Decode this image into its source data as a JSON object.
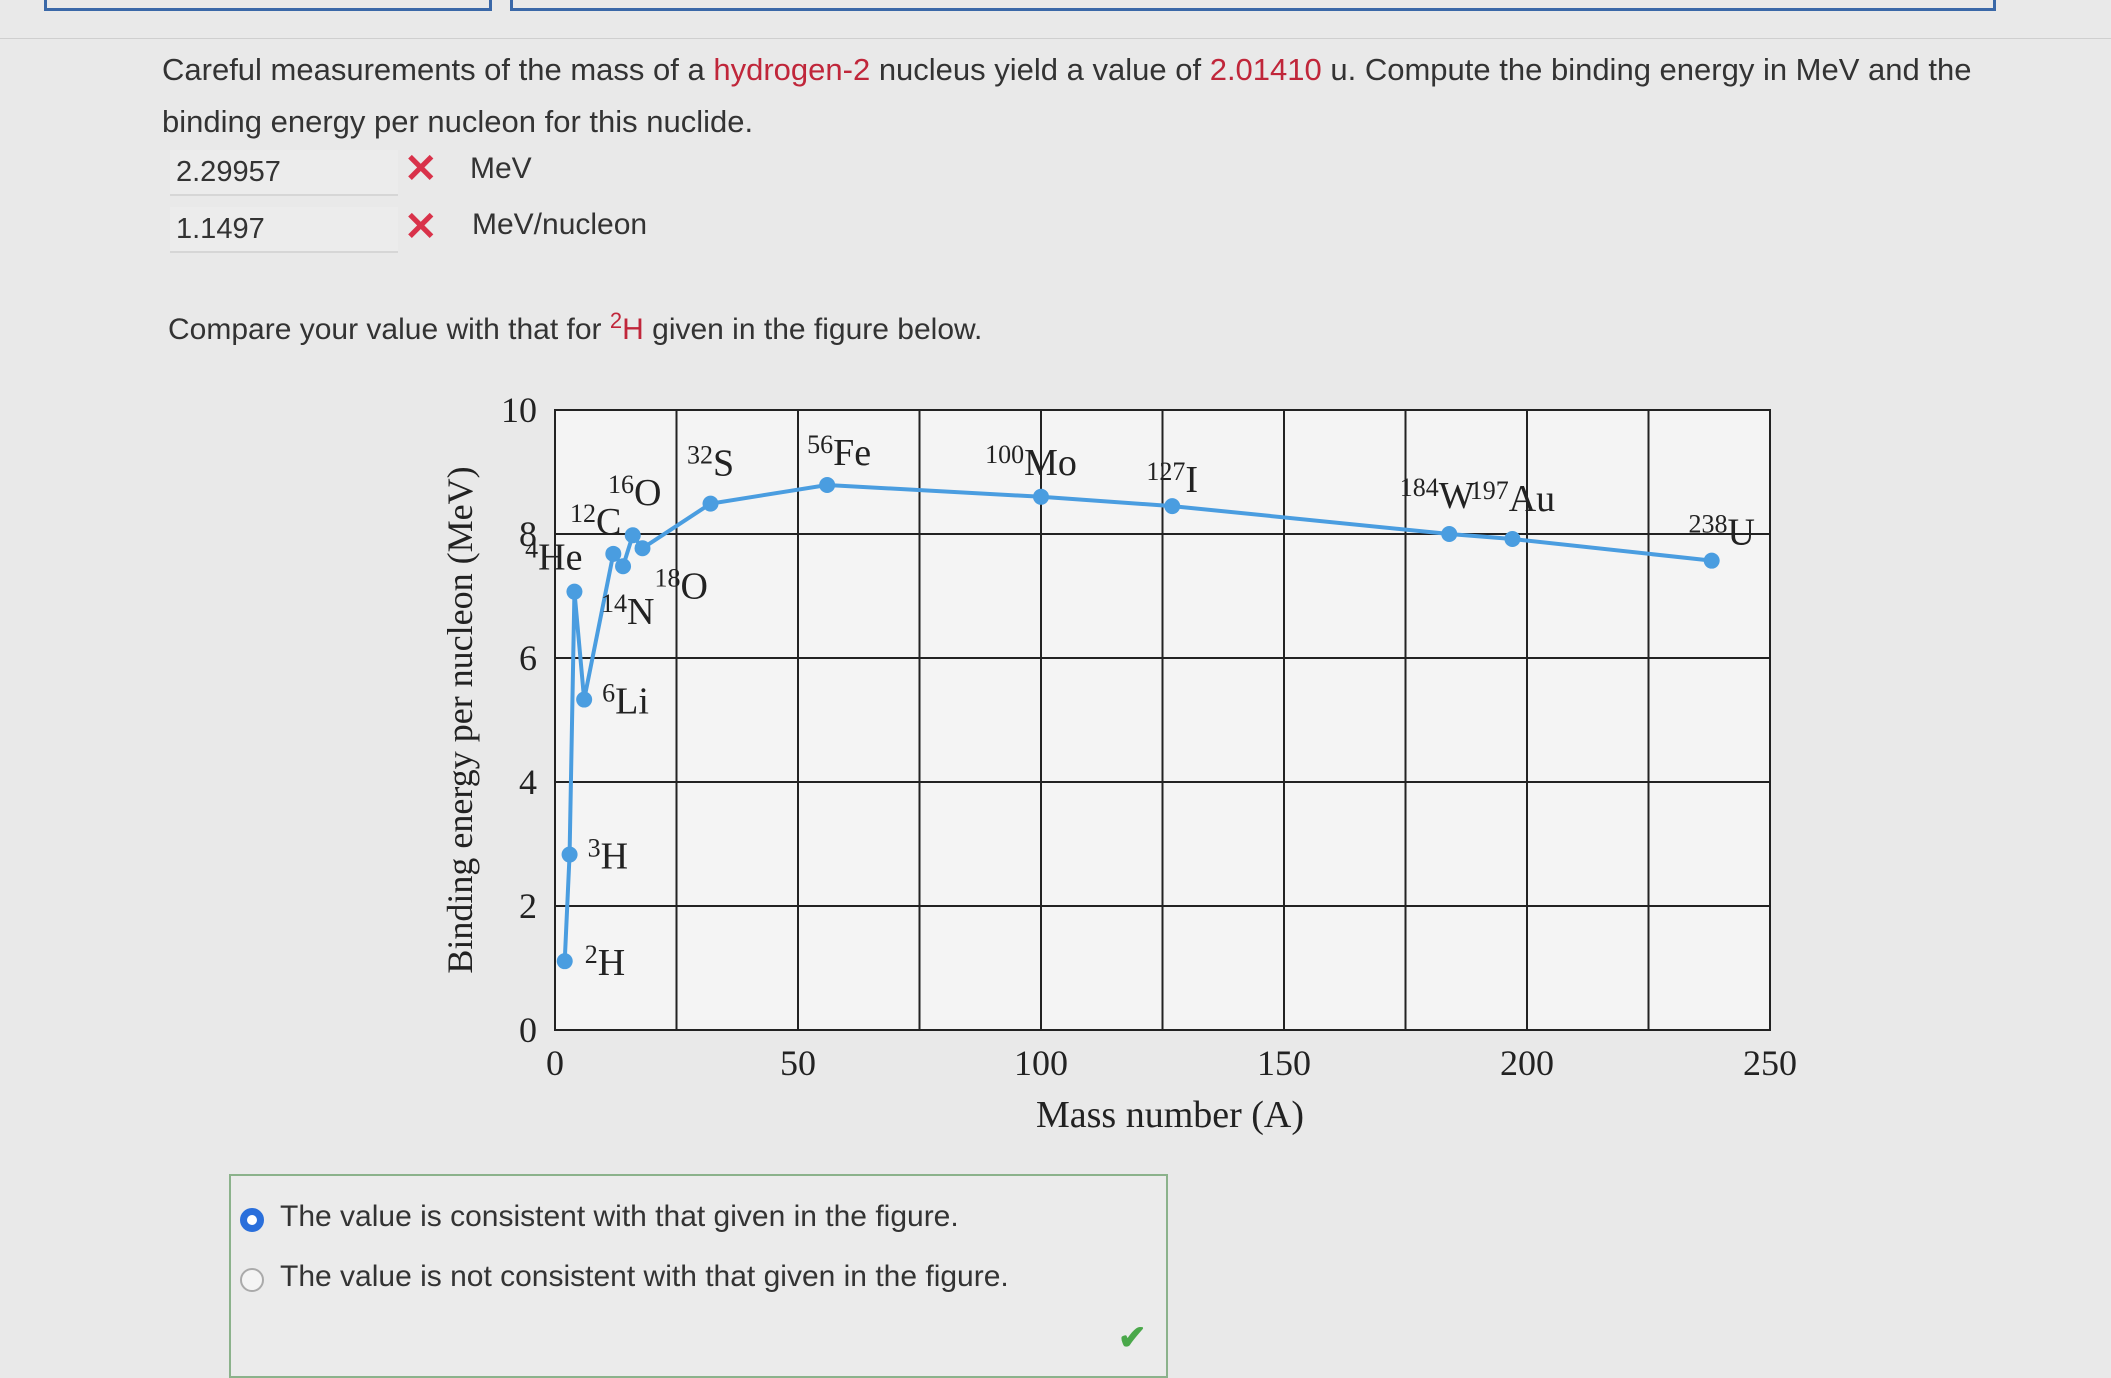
{
  "question": {
    "text_parts": [
      "Careful measurements of the mass of a ",
      "hydrogen-2",
      " nucleus yield a value of ",
      "2.01410",
      " u. Compute the binding energy in MeV and the binding energy per nucleon for this nuclide."
    ]
  },
  "answers": [
    {
      "value": "2.29957",
      "unit": "MeV"
    },
    {
      "value": "1.1497",
      "unit": "MeV/nucleon"
    }
  ],
  "compare": {
    "before": "Compare your value with that for ",
    "sup": "2",
    "symbol": "H",
    "after": " given in the figure below."
  },
  "chart_data": {
    "type": "line",
    "color": "#4a9de0",
    "x_label": "Mass number (A)",
    "y_label": "Binding energy per nucleon (MeV)",
    "x": [
      2,
      3,
      4,
      6,
      12,
      14,
      16,
      18,
      32,
      56,
      100,
      127,
      184,
      197,
      238
    ],
    "values": [
      1.11,
      2.83,
      7.07,
      5.33,
      7.68,
      7.48,
      7.98,
      7.77,
      8.49,
      8.79,
      8.6,
      8.45,
      8.0,
      7.92,
      7.57
    ],
    "point_labels": [
      {
        "sup": "2",
        "symbol": "H"
      },
      {
        "sup": "3",
        "symbol": "H"
      },
      {
        "sup": "4",
        "symbol": "He"
      },
      {
        "sup": "6",
        "symbol": "Li"
      },
      {
        "sup": "12",
        "symbol": "C"
      },
      {
        "sup": "14",
        "symbol": "N"
      },
      {
        "sup": "16",
        "symbol": "O"
      },
      {
        "sup": "18",
        "symbol": "O"
      },
      {
        "sup": "32",
        "symbol": "S"
      },
      {
        "sup": "56",
        "symbol": "Fe"
      },
      {
        "sup": "100",
        "symbol": "Mo"
      },
      {
        "sup": "127",
        "symbol": "I"
      },
      {
        "sup": "184",
        "symbol": "W"
      },
      {
        "sup": "197",
        "symbol": "Au"
      },
      {
        "sup": "238",
        "symbol": "U"
      }
    ],
    "xlim": [
      0,
      250
    ],
    "ylim": [
      0,
      10
    ],
    "xticks": [
      0,
      50,
      100,
      150,
      200,
      250
    ],
    "yticks": [
      0,
      2,
      4,
      6,
      8,
      10
    ],
    "x_gridlines": [
      0,
      25,
      50,
      75,
      100,
      125,
      150,
      175,
      200,
      225,
      250
    ],
    "grid": true
  },
  "options": [
    {
      "text": "The value is consistent with that given in the figure.",
      "selected": true
    },
    {
      "text": "The value is not consistent with that given in the figure.",
      "selected": false
    }
  ]
}
